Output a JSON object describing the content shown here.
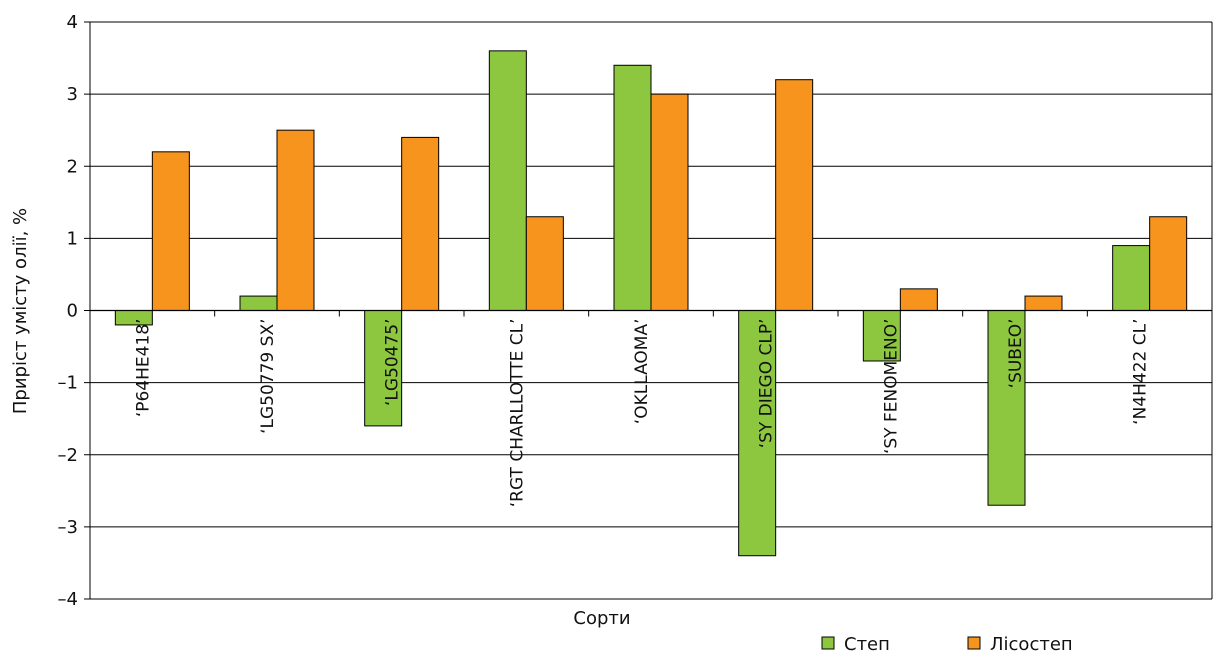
{
  "chart_data": {
    "type": "bar",
    "ylabel": "Приріст умісту олії, %",
    "xlabel": "Сорти",
    "ylim": [
      -4,
      4
    ],
    "yticks": [
      4,
      3,
      2,
      1,
      0,
      -1,
      -2,
      -3,
      -4
    ],
    "ytick_labels": [
      "4",
      "3",
      "2",
      "1",
      "0",
      "–1",
      "–2",
      "–3",
      "–4"
    ],
    "grid": true,
    "legend_position": "bottom-right",
    "categories": [
      "‘P64HE418’",
      "‘LG50779 SX’",
      "‘LG50475’",
      "‘RGT CHARLLOTTE CL’",
      "‘OKLLAOMA’",
      "‘SY DIEGO CLP’",
      "‘SY FENOMENO’",
      "‘SUBEO’",
      "‘N4H422 CL’"
    ],
    "series": [
      {
        "name": "Степ",
        "color": "#8dc63f",
        "values": [
          -0.2,
          0.2,
          -1.6,
          3.6,
          3.4,
          -3.4,
          -0.7,
          -2.7,
          0.9
        ]
      },
      {
        "name": "Лісостеп",
        "color": "#f7941d",
        "values": [
          2.2,
          2.5,
          2.4,
          1.3,
          3.0,
          3.2,
          0.3,
          0.2,
          1.3
        ]
      }
    ]
  }
}
